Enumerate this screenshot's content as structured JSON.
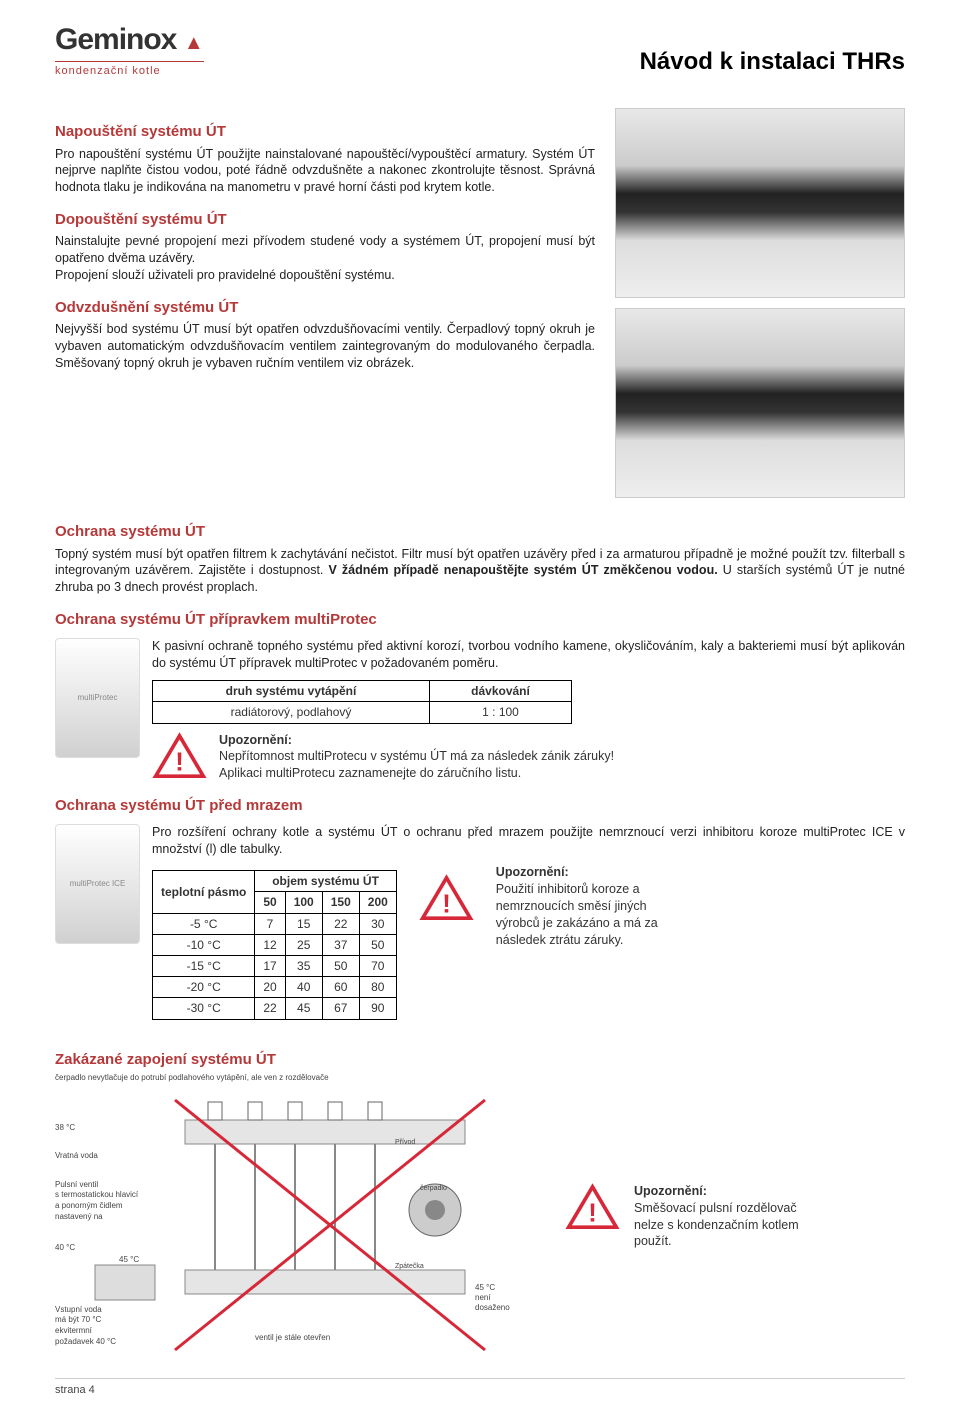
{
  "logo": {
    "brand": "Geminox",
    "tagline": "kondenzační kotle"
  },
  "doc_title": "Návod k instalaci THRs",
  "sections": {
    "napousteni": {
      "title": "Napouštění systému ÚT",
      "body": "Pro napouštění systému ÚT použijte nainstalované napouštěcí/vypouštěcí armatury. Systém ÚT nejprve naplňte čistou vodou, poté řádně odvzdušněte a nakonec zkontrolujte těsnost. Správná hodnota tlaku je indikována na manometru v pravé horní části pod krytem kotle."
    },
    "dopousteni": {
      "title": "Dopouštění systému ÚT",
      "body": "Nainstalujte pevné propojení mezi přívodem studené vody a systémem ÚT, propojení musí být opatřeno dvěma uzávěry.\nPropojení slouží uživateli pro pravidelné dopouštění systému."
    },
    "odvzdusneni": {
      "title": "Odvzdušnění systému ÚT",
      "body": "Nejvyšší bod systému ÚT musí být opatřen odvzdušňovacími ventily. Čerpadlový topný okruh je vybaven automatickým odvzdušňovacím ventilem zaintegrovaným do modulovaného čerpadla. Směšovaný topný okruh je vybaven ručním ventilem viz obrázek."
    },
    "ochrana": {
      "title": "Ochrana systému ÚT",
      "body_pre": "Topný systém musí být opatřen filtrem k zachytávání nečistot. Filtr musí být opatřen uzávěry před i za armaturou případně je možné použít tzv. filterball s integrovaným uzávěrem. Zajistěte i dostupnost. ",
      "body_bold": "V žádném případě nenapouštějte systém ÚT změkčenou vodou.",
      "body_post": " U starších systémů ÚT je nutné zhruba po 3 dnech provést proplach."
    },
    "multiprotec": {
      "title": "Ochrana systému ÚT přípravkem multiProtec",
      "body": "K pasivní ochraně topného systému před aktivní korozí, tvorbou vodního kamene, okysličováním, kaly a bakteriemi musí být aplikován do systému ÚT přípravek multiProtec v požadovaném poměru.",
      "product_label": "multiProtec",
      "table": {
        "headers": [
          "druh systému vytápění",
          "dávkování"
        ],
        "row": [
          "radiátorový, podlahový",
          "1 : 100"
        ]
      },
      "warn_title": "Upozornění:",
      "warn_l1": "Nepřítomnost multiProtecu v systému ÚT má za následek zánik záruky!",
      "warn_l2": "Aplikaci multiProtecu zaznamenejte do záručního listu."
    },
    "mraz": {
      "title": "Ochrana systému ÚT před mrazem",
      "body": "Pro rozšíření ochrany kotle a systému ÚT o ochranu před mrazem použijte nemrznoucí verzi inhibitoru koroze multiProtec ICE v množství (l) dle tabulky.",
      "product_label": "multiProtec ICE",
      "table": {
        "header_left": "teplotní pásmo",
        "header_right": "objem systému ÚT",
        "cols": [
          "50",
          "100",
          "150",
          "200"
        ],
        "rows": [
          [
            "-5 °C",
            "7",
            "15",
            "22",
            "30"
          ],
          [
            "-10 °C",
            "12",
            "25",
            "37",
            "50"
          ],
          [
            "-15 °C",
            "17",
            "35",
            "50",
            "70"
          ],
          [
            "-20 °C",
            "20",
            "40",
            "60",
            "80"
          ],
          [
            "-30 °C",
            "22",
            "45",
            "67",
            "90"
          ]
        ]
      },
      "warn_title": "Upozornění:",
      "warn_body": "Použití inhibitorů koroze a nemrznoucích směsí jiných výrobců je zakázáno a má za následek ztrátu záruky."
    },
    "zakazane": {
      "title": "Zakázané zapojení systému ÚT",
      "caption_top": "čerpadlo nevytlačuje do potrubí podlahového vytápění, ale ven z rozdělovače",
      "label_38": "38 °C",
      "label_vratna": "Vratná voda",
      "label_pulsni": "Pulsní ventil\ns termostatickou hlavicí\na ponorným čidlem\nnastavený na",
      "label_45": "45 °C",
      "label_40": "40 °C",
      "label_vstupni": "Vstupní voda\nmá být 70 °C\nekvitermní\npožadavek 40 °C",
      "label_prvod": "Přívod",
      "label_cerpadlo": "čerpadlo",
      "label_zpatecka": "Zpátečka",
      "label_45_neni": "45 °C\nnení\ndosaženo",
      "label_ventil": "ventil je stále otevřen",
      "warn_title": "Upozornění:",
      "warn_body": "Směšovací pulsní rozdělovač nelze s kondenzačním kotlem použít."
    }
  },
  "footer": "strana 4",
  "colors": {
    "accent": "#b63939",
    "warn": "#d62839",
    "text": "#222222",
    "border": "#000000",
    "bg": "#ffffff"
  }
}
